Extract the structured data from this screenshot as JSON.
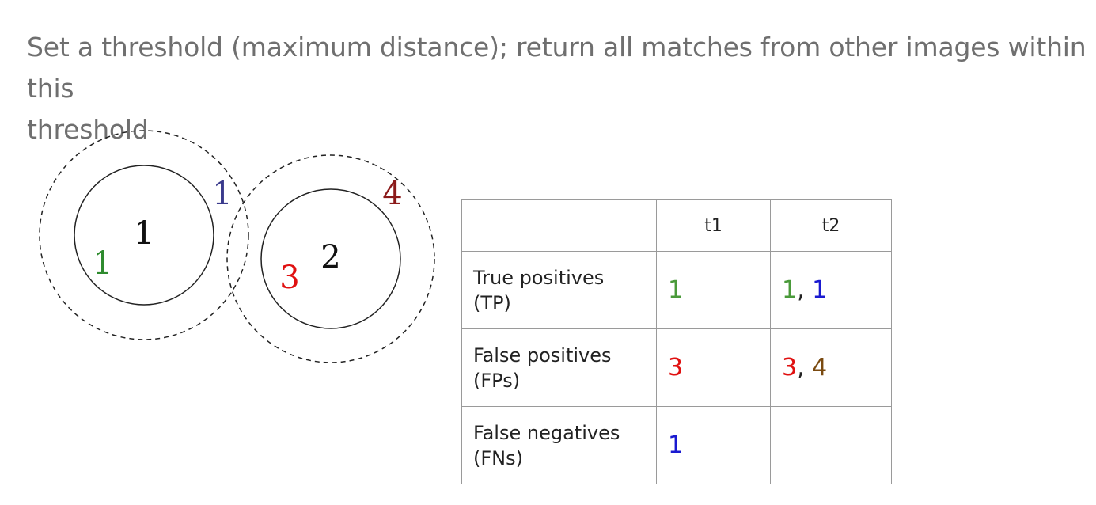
{
  "heading": {
    "line1": "Set a threshold (maximum distance); return all matches from other images within this",
    "line2": "threshold"
  },
  "diagram": {
    "left_group": {
      "center_label": "1",
      "inner_match_label": "1",
      "outer_match_label": "1"
    },
    "right_group": {
      "center_label": "2",
      "inner_match_label": "3",
      "outer_match_label": "4"
    }
  },
  "table": {
    "header": [
      "",
      "t1",
      "t2"
    ],
    "rows": [
      {
        "label_line1": "True positives",
        "label_line2": "(TP)",
        "t1": [
          {
            "text": "1",
            "color": "#4a9a3a"
          }
        ],
        "t2": [
          {
            "text": "1",
            "color": "#4a9a3a"
          },
          {
            "text": "1",
            "color": "#1a1ad0"
          }
        ]
      },
      {
        "label_line1": "False positives",
        "label_line2": "(FPs)",
        "t1": [
          {
            "text": "3",
            "color": "#e01010"
          }
        ],
        "t2": [
          {
            "text": "3",
            "color": "#e01010"
          },
          {
            "text": "4",
            "color": "#7a4a10"
          }
        ]
      },
      {
        "label_line1": "False negatives",
        "label_line2": "(FNs)",
        "t1": [
          {
            "text": "1",
            "color": "#1a1ad0"
          }
        ],
        "t2": []
      }
    ],
    "separator": ", "
  },
  "colors": {
    "green": "#2e8b2e",
    "blue": "#3a3a8c",
    "red": "#e01010",
    "darkred": "#8b1a1a"
  }
}
